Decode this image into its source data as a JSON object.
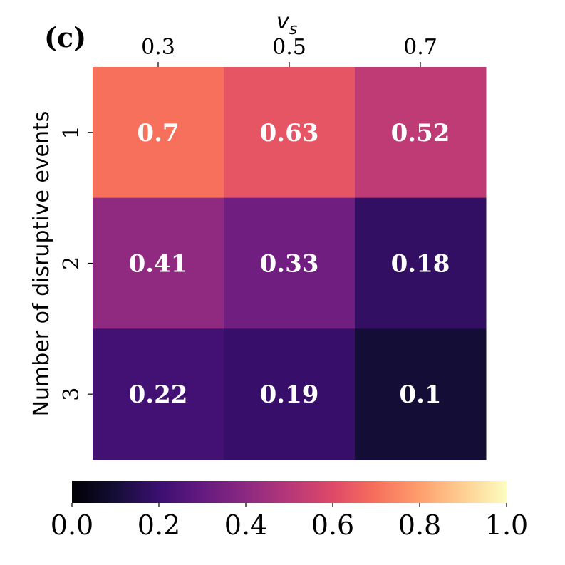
{
  "panel_label": "(c)",
  "chart_data": {
    "type": "heatmap",
    "title": "",
    "xlabel": "v_s",
    "xlabel_main": "v",
    "xlabel_sub": "s",
    "ylabel": "Number of disruptive events",
    "x_categories": [
      "0.3",
      "0.5",
      "0.7"
    ],
    "y_categories": [
      "1",
      "2",
      "3"
    ],
    "values": [
      [
        0.7,
        0.63,
        0.52
      ],
      [
        0.41,
        0.33,
        0.18
      ],
      [
        0.22,
        0.19,
        0.1
      ]
    ],
    "value_labels": [
      [
        "0.7",
        "0.63",
        "0.52"
      ],
      [
        "0.41",
        "0.33",
        "0.18"
      ],
      [
        "0.22",
        "0.19",
        "0.1"
      ]
    ],
    "colormap": "magma",
    "vmin": 0.0,
    "vmax": 1.0,
    "colorbar_ticks": [
      "0.0",
      "0.2",
      "0.4",
      "0.6",
      "0.8",
      "1.0"
    ],
    "colorbar_orientation": "horizontal",
    "colorbar_placement": "bottom",
    "magma_stops": [
      "#000004",
      "#140e36",
      "#3b0f70",
      "#641a80",
      "#8c2981",
      "#b73779",
      "#de4968",
      "#f7705c",
      "#fe9f6d",
      "#fecf92",
      "#fcfdbf"
    ]
  }
}
